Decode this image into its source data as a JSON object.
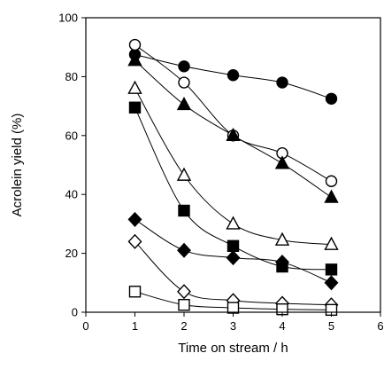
{
  "chart_data": {
    "type": "scatter",
    "xlabel": "Time on stream / h",
    "ylabel": "Acrolein yield (%)",
    "xlim": [
      0,
      6
    ],
    "ylim": [
      0,
      100
    ],
    "xticks": [
      0,
      1,
      2,
      3,
      4,
      5,
      6
    ],
    "yticks": [
      0,
      20,
      40,
      60,
      80,
      100
    ],
    "xtick_labels": [
      "0",
      "1",
      "2",
      "3",
      "4",
      "5",
      "6"
    ],
    "ytick_labels": [
      "0",
      "20",
      "40",
      "60",
      "80",
      "100"
    ],
    "grid": false,
    "legend": "none",
    "lines": "smooth fitted curves through each series",
    "colors": {
      "ink": "#000000",
      "background": "#ffffff"
    },
    "series": [
      {
        "marker": "filled-circle",
        "x": [
          1,
          2,
          3,
          4,
          5
        ],
        "values": [
          87.5,
          83.5,
          80.5,
          78.0,
          72.5
        ]
      },
      {
        "marker": "open-circle",
        "x": [
          1,
          2,
          3,
          4,
          5
        ],
        "values": [
          90.8,
          78.0,
          60.0,
          54.0,
          44.5
        ]
      },
      {
        "marker": "filled-triangle",
        "x": [
          1,
          2,
          3,
          4,
          5
        ],
        "values": [
          85.5,
          70.5,
          60.0,
          50.5,
          39.0
        ]
      },
      {
        "marker": "open-triangle",
        "x": [
          1,
          2,
          3,
          4,
          5
        ],
        "values": [
          76.0,
          46.5,
          30.0,
          24.5,
          23.0
        ]
      },
      {
        "marker": "filled-square",
        "x": [
          1,
          2,
          3,
          4,
          5
        ],
        "values": [
          69.5,
          34.5,
          22.5,
          15.5,
          14.5
        ]
      },
      {
        "marker": "filled-diamond",
        "x": [
          1,
          2,
          3,
          4,
          5
        ],
        "values": [
          31.5,
          21.0,
          18.5,
          17.0,
          10.0
        ]
      },
      {
        "marker": "open-diamond",
        "x": [
          1,
          2,
          3,
          4,
          5
        ],
        "values": [
          24.0,
          7.0,
          4.0,
          3.0,
          2.5
        ]
      },
      {
        "marker": "open-square",
        "x": [
          1,
          2,
          3,
          4,
          5
        ],
        "values": [
          7.0,
          2.5,
          1.5,
          1.0,
          0.8
        ]
      }
    ]
  }
}
